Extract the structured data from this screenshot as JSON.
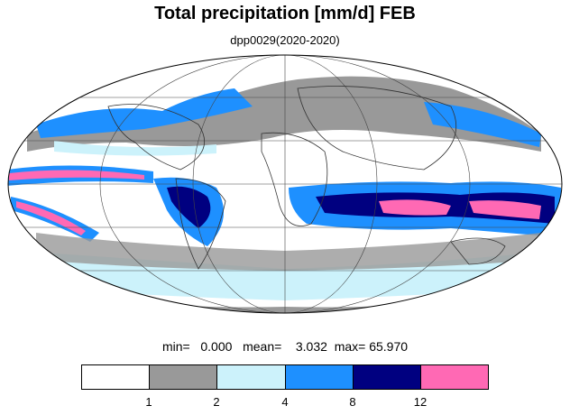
{
  "title": "Total precipitation [mm/d] FEB",
  "subtitle": "dpp0029(2020-2020)",
  "stats": {
    "min_label": "min=",
    "min_value": "0.000",
    "mean_label": "mean=",
    "mean_value": "3.032",
    "max_label": "max=",
    "max_value": "65.970"
  },
  "colorbar": {
    "colors": [
      "#ffffff",
      "#999999",
      "#ccf2fb",
      "#1e90ff",
      "#000080",
      "#ff69b4"
    ],
    "tick_labels": [
      "1",
      "2",
      "4",
      "8",
      "12"
    ]
  },
  "map": {
    "projection": "Mollweide",
    "ocean_color": "#ffffff",
    "coastline_color": "#333333"
  }
}
